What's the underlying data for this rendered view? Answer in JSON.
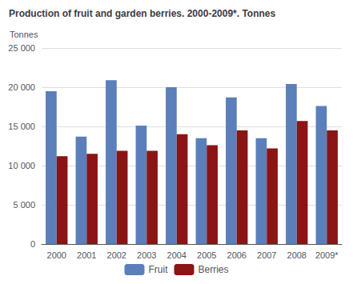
{
  "chart_data": {
    "type": "bar",
    "title": "Production of fruit and garden berries. 2000-2009*. Tonnes",
    "ylabel": "Tonnes",
    "categories": [
      "2000",
      "2001",
      "2002",
      "2003",
      "2004",
      "2005",
      "2006",
      "2007",
      "2008",
      "2009*"
    ],
    "series": [
      {
        "name": "Fruit",
        "color": "#5b7fbb",
        "values": [
          19500,
          13700,
          20900,
          15100,
          20000,
          13500,
          18700,
          13500,
          20400,
          17600
        ]
      },
      {
        "name": "Berries",
        "color": "#8b1414",
        "values": [
          11200,
          11500,
          11900,
          11900,
          14000,
          12600,
          14500,
          12200,
          15700,
          14500
        ]
      }
    ],
    "ylim": [
      0,
      25000
    ],
    "yticks": [
      0,
      {
        "value": 5000,
        "label": "5 000"
      },
      {
        "value": 10000,
        "label": "10 000"
      },
      {
        "value": 15000,
        "label": "15 000"
      },
      {
        "value": 20000,
        "label": "20 000"
      },
      {
        "value": 25000,
        "label": "25 000"
      }
    ],
    "grid": true,
    "legend": "bottom"
  }
}
